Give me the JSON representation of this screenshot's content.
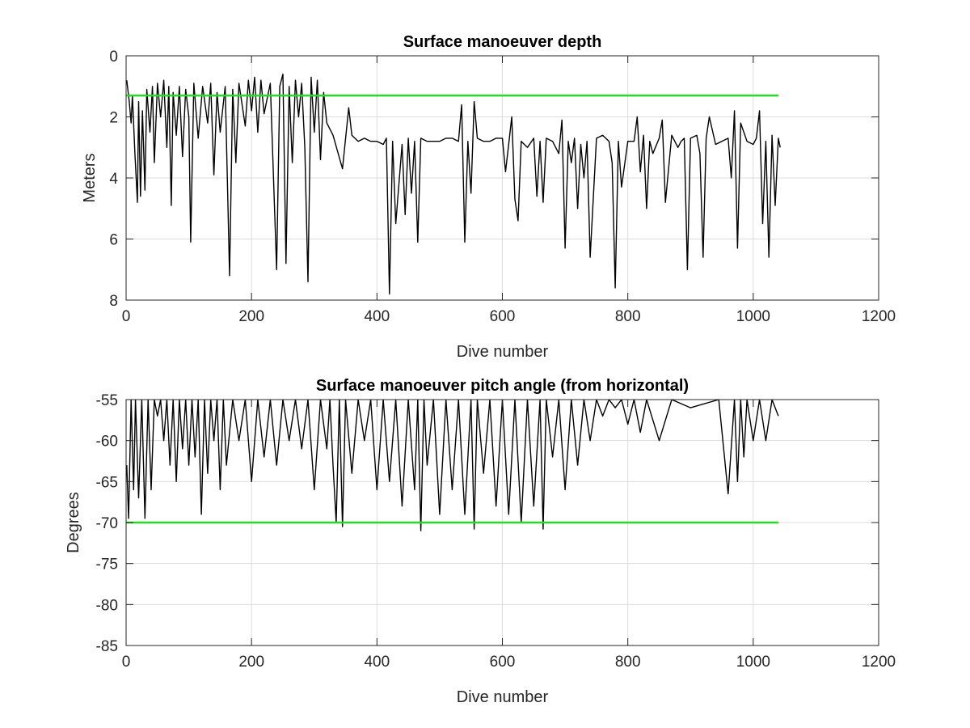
{
  "chart_data": [
    {
      "type": "line",
      "title": "Surface manoeuver depth",
      "xlabel": "Dive number",
      "ylabel": "Meters",
      "xlim": [
        0,
        1200
      ],
      "ylim": [
        0,
        8
      ],
      "y_reversed": true,
      "xticks": [
        0,
        200,
        400,
        600,
        800,
        1000,
        1200
      ],
      "yticks": [
        0,
        2,
        4,
        6,
        8
      ],
      "grid": true,
      "series": [
        {
          "color": "#000000",
          "x": [
            1,
            5,
            8,
            10,
            14,
            18,
            20,
            23,
            26,
            30,
            33,
            38,
            42,
            45,
            50,
            55,
            60,
            65,
            68,
            72,
            75,
            80,
            85,
            90,
            95,
            100,
            103,
            108,
            115,
            122,
            130,
            135,
            140,
            145,
            150,
            158,
            165,
            170,
            175,
            180,
            190,
            195,
            200,
            205,
            210,
            215,
            220,
            230,
            240,
            245,
            250,
            255,
            260,
            265,
            270,
            275,
            280,
            285,
            290,
            295,
            300,
            305,
            310,
            315,
            320,
            330,
            345,
            355,
            360,
            370,
            380,
            390,
            400,
            410,
            415,
            420,
            425,
            430,
            440,
            445,
            450,
            455,
            460,
            465,
            470,
            480,
            490,
            500,
            510,
            520,
            530,
            535,
            540,
            545,
            550,
            555,
            560,
            570,
            580,
            590,
            600,
            605,
            610,
            615,
            620,
            625,
            630,
            640,
            650,
            655,
            660,
            665,
            670,
            680,
            690,
            695,
            700,
            705,
            710,
            715,
            720,
            725,
            730,
            735,
            740,
            750,
            760,
            770,
            775,
            780,
            785,
            790,
            800,
            810,
            815,
            820,
            825,
            830,
            835,
            840,
            850,
            855,
            860,
            870,
            880,
            885,
            890,
            895,
            900,
            910,
            915,
            920,
            925,
            930,
            940,
            950,
            960,
            965,
            970,
            975,
            980,
            990,
            1000,
            1005,
            1010,
            1015,
            1020,
            1025,
            1030,
            1035,
            1040,
            1043
          ],
          "y": [
            0.8,
            1.5,
            2.2,
            1.3,
            3.2,
            4.8,
            1.5,
            4.6,
            1.8,
            4.4,
            1.1,
            2.5,
            1.0,
            3.5,
            0.9,
            2.0,
            0.8,
            3.0,
            1.0,
            4.9,
            1.2,
            2.6,
            1.0,
            3.3,
            1.1,
            2.0,
            6.1,
            0.9,
            2.7,
            1.0,
            2.2,
            0.9,
            3.9,
            1.2,
            2.5,
            1.0,
            7.2,
            1.1,
            3.5,
            0.9,
            2.3,
            0.8,
            1.8,
            0.7,
            2.5,
            0.8,
            1.9,
            0.9,
            7.0,
            1.0,
            0.6,
            6.8,
            1.0,
            3.5,
            0.8,
            2.0,
            0.9,
            3.0,
            7.4,
            0.7,
            2.5,
            0.8,
            3.4,
            1.2,
            2.2,
            2.6,
            3.7,
            1.7,
            2.6,
            2.8,
            2.7,
            2.8,
            2.8,
            2.9,
            2.7,
            7.8,
            2.8,
            5.5,
            2.9,
            5.2,
            2.7,
            4.5,
            2.8,
            6.1,
            2.7,
            2.8,
            2.8,
            2.8,
            2.7,
            2.7,
            2.8,
            1.6,
            6.1,
            2.8,
            4.5,
            1.5,
            2.7,
            2.8,
            2.8,
            2.7,
            2.7,
            3.8,
            2.9,
            2.0,
            4.7,
            5.4,
            2.8,
            3.0,
            2.7,
            4.6,
            2.8,
            4.8,
            2.7,
            2.8,
            3.2,
            2.1,
            6.3,
            2.8,
            3.5,
            2.7,
            5.0,
            2.9,
            4.0,
            2.8,
            6.6,
            2.7,
            2.6,
            2.8,
            3.5,
            7.6,
            2.8,
            4.3,
            2.8,
            2.8,
            2.0,
            3.8,
            2.6,
            5.0,
            2.8,
            3.2,
            2.7,
            2.1,
            4.8,
            2.6,
            3.0,
            2.8,
            2.7,
            7.0,
            2.7,
            2.6,
            3.2,
            6.6,
            2.7,
            2.0,
            2.9,
            2.8,
            2.7,
            4.0,
            1.8,
            6.3,
            2.2,
            2.8,
            2.9,
            2.7,
            1.8,
            5.5,
            2.8,
            6.6,
            2.6,
            4.9,
            2.7,
            3.0
          ]
        },
        {
          "color": "#22dd22",
          "x": [
            0,
            1040
          ],
          "y": [
            1.3,
            1.3
          ]
        }
      ]
    },
    {
      "type": "line",
      "title": "Surface manoeuver pitch angle (from horizontal)",
      "xlabel": "Dive number",
      "ylabel": "Degrees",
      "xlim": [
        0,
        1200
      ],
      "ylim": [
        -85,
        -55
      ],
      "xticks": [
        0,
        200,
        400,
        600,
        800,
        1000,
        1200
      ],
      "yticks": [
        -55,
        -60,
        -65,
        -70,
        -75,
        -80,
        -85
      ],
      "yticklabels": [
        "-55",
        "-60",
        "-65",
        "-70",
        "-75",
        "-80",
        "-85"
      ],
      "grid": true,
      "series": [
        {
          "color": "#000000",
          "x": [
            1,
            4,
            8,
            12,
            15,
            20,
            25,
            30,
            35,
            40,
            45,
            50,
            55,
            60,
            65,
            70,
            75,
            80,
            85,
            90,
            95,
            100,
            105,
            110,
            115,
            120,
            125,
            130,
            135,
            140,
            145,
            150,
            155,
            160,
            170,
            180,
            190,
            200,
            210,
            220,
            230,
            240,
            250,
            260,
            270,
            280,
            290,
            300,
            310,
            320,
            325,
            330,
            335,
            340,
            345,
            350,
            360,
            370,
            380,
            390,
            400,
            410,
            420,
            430,
            440,
            450,
            460,
            465,
            470,
            475,
            480,
            490,
            500,
            510,
            520,
            530,
            540,
            550,
            555,
            560,
            570,
            580,
            590,
            600,
            610,
            620,
            630,
            640,
            650,
            660,
            665,
            670,
            680,
            690,
            700,
            710,
            720,
            730,
            740,
            750,
            760,
            770,
            780,
            790,
            800,
            810,
            820,
            830,
            850,
            870,
            900,
            945,
            960,
            970,
            975,
            980,
            985,
            990,
            1000,
            1010,
            1020,
            1030,
            1040
          ],
          "y": [
            -63,
            -69.5,
            -55,
            -66,
            -55,
            -67,
            -55,
            -69.5,
            -55,
            -66,
            -55,
            -57,
            -55,
            -60,
            -55,
            -63,
            -55,
            -65,
            -55,
            -61,
            -55,
            -63,
            -55,
            -62,
            -55,
            -69,
            -55,
            -64,
            -55,
            -60,
            -55,
            -66,
            -55,
            -63,
            -55,
            -60,
            -55,
            -65,
            -55,
            -62,
            -55,
            -63,
            -55,
            -60,
            -55,
            -61,
            -55,
            -66,
            -55,
            -61,
            -55,
            -63,
            -70,
            -55,
            -70.5,
            -55,
            -64,
            -55,
            -60,
            -55,
            -66,
            -55,
            -65,
            -55,
            -68,
            -55,
            -66,
            -55,
            -71,
            -55,
            -63,
            -55,
            -69,
            -55,
            -66,
            -55,
            -69,
            -55,
            -70.8,
            -55,
            -64,
            -55,
            -68,
            -55,
            -69,
            -55,
            -70,
            -55,
            -68,
            -55,
            -70.8,
            -55,
            -62,
            -55,
            -66,
            -55,
            -63,
            -55,
            -60,
            -55,
            -57,
            -55,
            -56,
            -55,
            -58,
            -55,
            -59,
            -55,
            -60,
            -55,
            -56,
            -55,
            -66.5,
            -55,
            -65,
            -55,
            -62,
            -55,
            -60,
            -55,
            -60,
            -55,
            -57
          ]
        },
        {
          "color": "#22dd22",
          "x": [
            0,
            1040
          ],
          "y": [
            -70,
            -70
          ]
        }
      ]
    }
  ]
}
